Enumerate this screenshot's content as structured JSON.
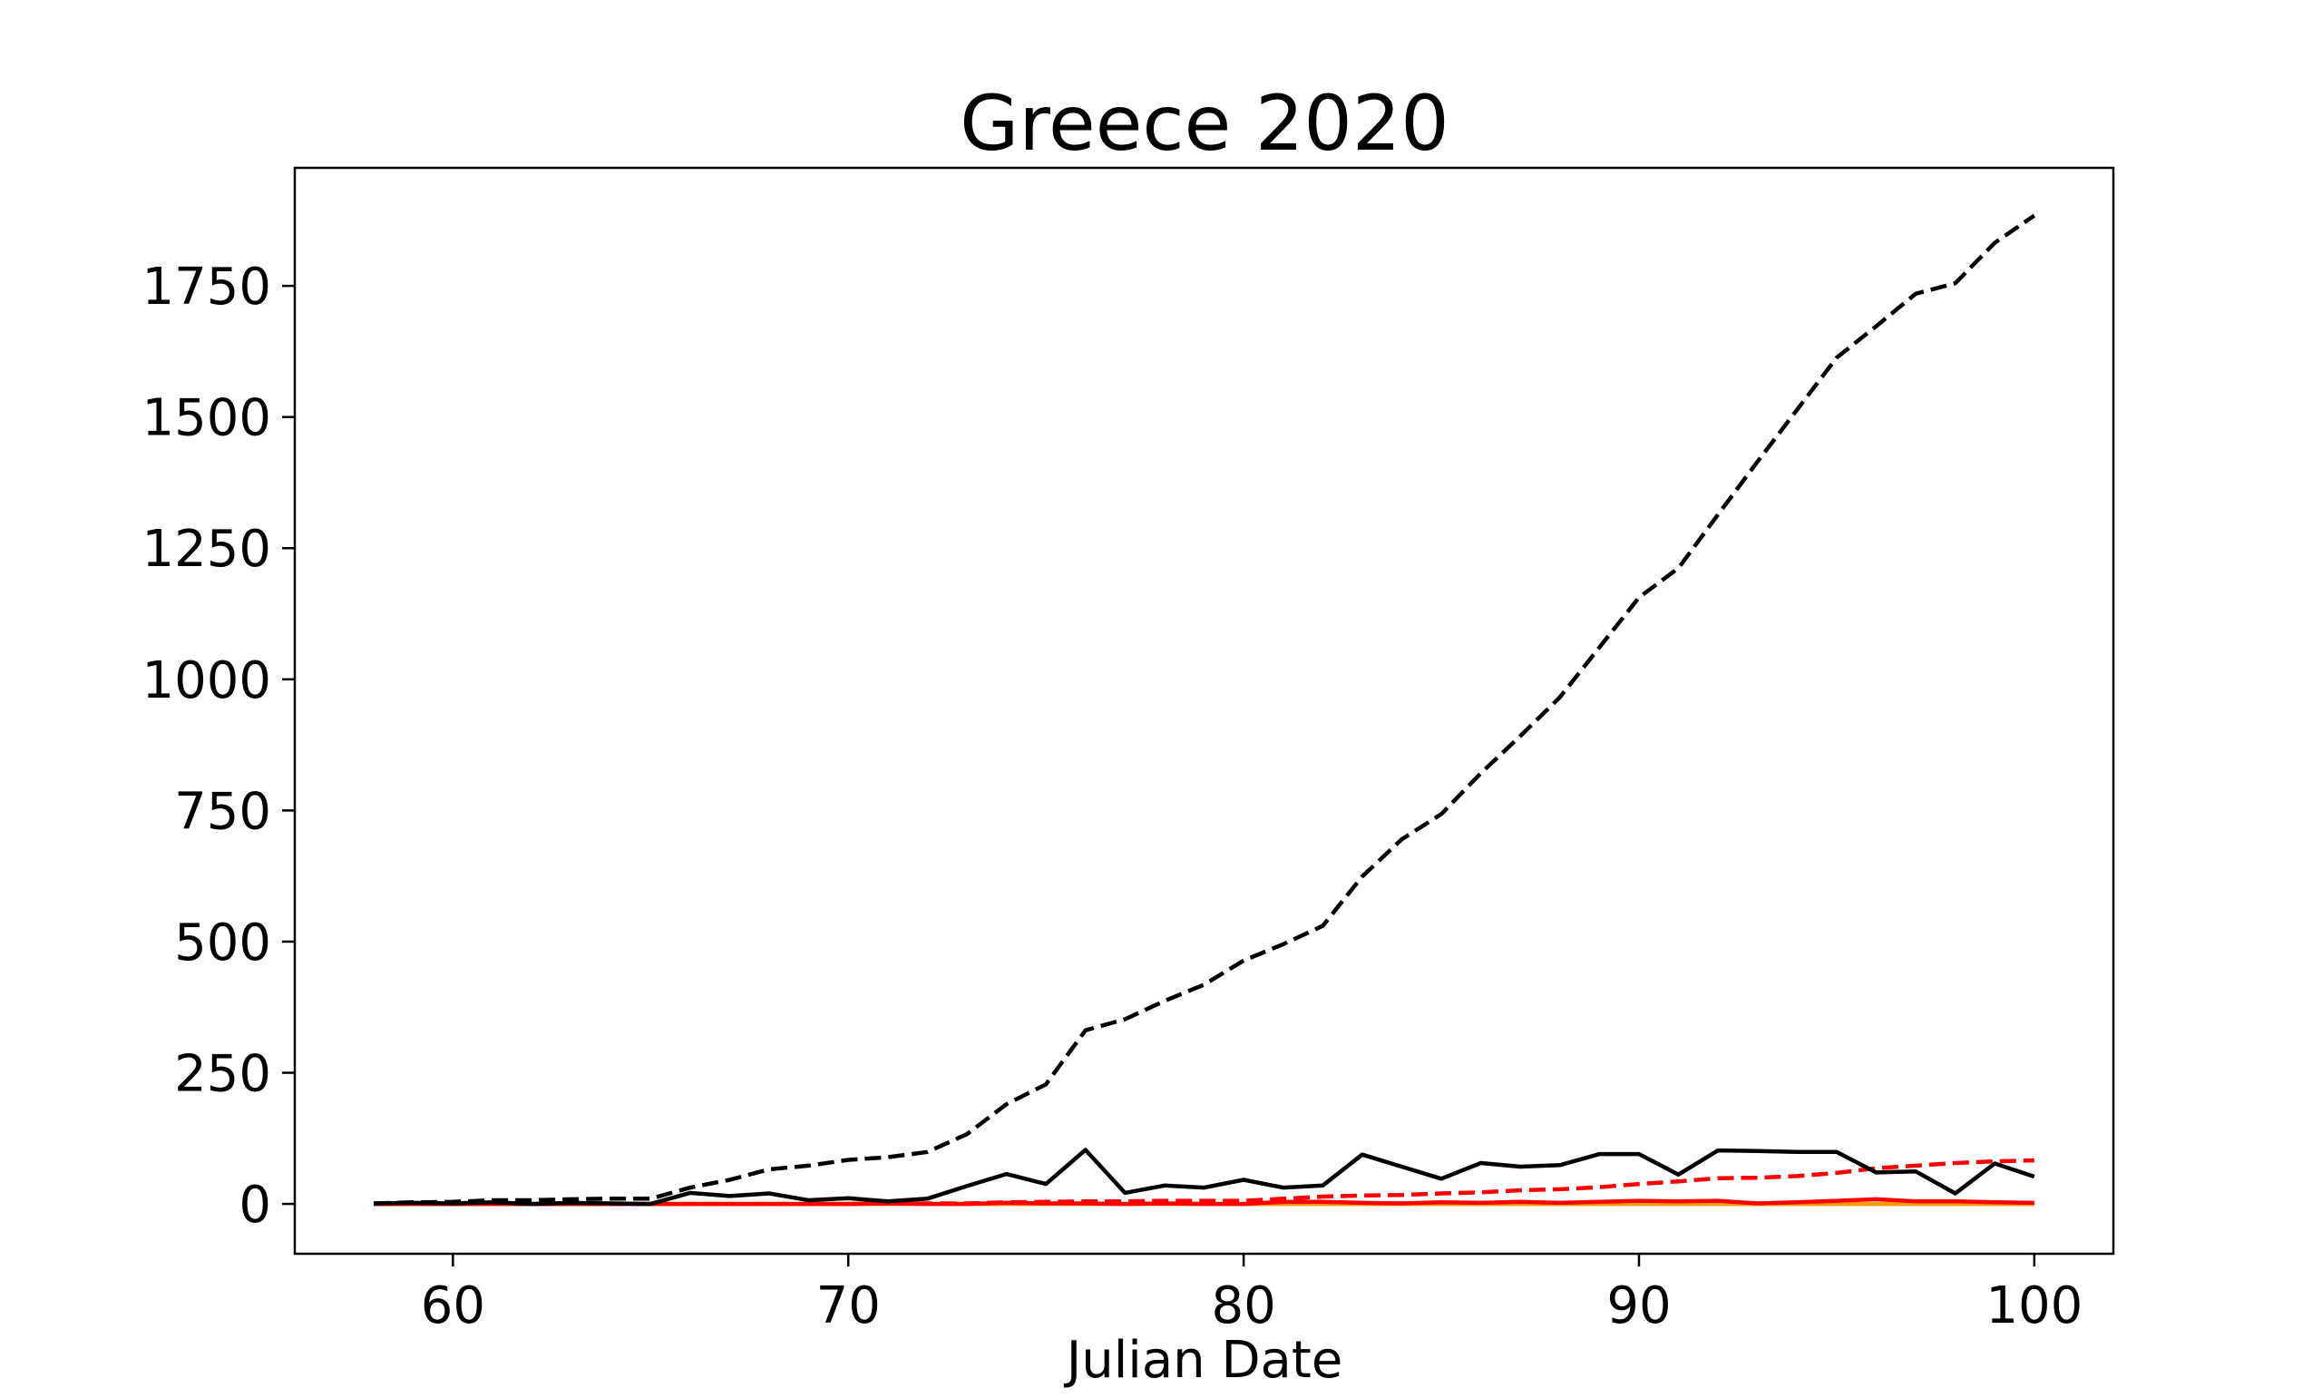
{
  "chart_data": {
    "type": "line",
    "title": "Greece 2020",
    "xlabel": "Julian Date",
    "ylabel": "",
    "xlim": [
      56,
      102
    ],
    "ylim": [
      -95,
      1975
    ],
    "x_ticks": [
      60,
      70,
      80,
      90,
      100
    ],
    "y_ticks": [
      0,
      250,
      500,
      750,
      1000,
      1250,
      1500,
      1750
    ],
    "x_tick_labels": [
      "60",
      "70",
      "80",
      "90",
      "100"
    ],
    "y_tick_labels": [
      "0",
      "250",
      "500",
      "750",
      "1000",
      "1250",
      "1500",
      "1750"
    ],
    "x": [
      58,
      59,
      60,
      61,
      62,
      63,
      64,
      65,
      66,
      67,
      68,
      69,
      70,
      71,
      72,
      73,
      74,
      75,
      76,
      77,
      78,
      79,
      80,
      81,
      82,
      83,
      84,
      85,
      86,
      87,
      88,
      89,
      90,
      91,
      92,
      93,
      94,
      95,
      96,
      97,
      98,
      99,
      100
    ],
    "grid": false,
    "legend": "none",
    "series": [
      {
        "color": "#000000",
        "style": "dashed",
        "values": [
          1,
          3,
          4,
          7,
          7,
          9,
          10,
          10,
          31,
          46,
          66,
          73,
          84,
          89,
          99,
          133,
          190,
          228,
          331,
          352,
          387,
          418,
          464,
          495,
          530,
          624,
          695,
          743,
          821,
          892,
          966,
          1061,
          1156,
          1212,
          1314,
          1415,
          1514,
          1613,
          1673,
          1735,
          1755,
          1832,
          1884
        ]
      },
      {
        "color": "#000000",
        "style": "solid",
        "values": [
          1,
          2,
          1,
          3,
          0,
          2,
          1,
          0,
          21,
          15,
          20,
          7,
          11,
          5,
          10,
          34,
          57,
          38,
          103,
          21,
          35,
          31,
          46,
          31,
          35,
          94,
          71,
          48,
          78,
          71,
          74,
          95,
          95,
          56,
          102,
          101,
          99,
          99,
          60,
          62,
          20,
          77,
          52
        ]
      },
      {
        "color": "#ff0000",
        "style": "dashed",
        "values": [
          0,
          0,
          0,
          0,
          0,
          0,
          0,
          0,
          0,
          0,
          0,
          0,
          0,
          1,
          1,
          1,
          3,
          4,
          5,
          5,
          6,
          6,
          6,
          10,
          14,
          16,
          17,
          20,
          22,
          26,
          28,
          32,
          38,
          43,
          49,
          50,
          53,
          59,
          68,
          73,
          78,
          81,
          83
        ]
      },
      {
        "color": "#ff0000",
        "style": "solid",
        "values": [
          0,
          0,
          0,
          0,
          0,
          0,
          0,
          0,
          0,
          0,
          0,
          0,
          0,
          1,
          0,
          0,
          2,
          1,
          1,
          0,
          1,
          0,
          0,
          4,
          4,
          2,
          1,
          3,
          2,
          4,
          2,
          4,
          6,
          5,
          6,
          1,
          3,
          6,
          9,
          5,
          5,
          3,
          2
        ]
      },
      {
        "color": "#ff9900",
        "style": "solid",
        "values": [
          0,
          0,
          0,
          0,
          0,
          0,
          0,
          0,
          0,
          0,
          0,
          0,
          0,
          0,
          0,
          0,
          0,
          0,
          0,
          0,
          0,
          0,
          0,
          0,
          0,
          0,
          0,
          0,
          0,
          0,
          0,
          0,
          0,
          0,
          0,
          0,
          0,
          0,
          0,
          0,
          0,
          0,
          0
        ]
      }
    ]
  }
}
